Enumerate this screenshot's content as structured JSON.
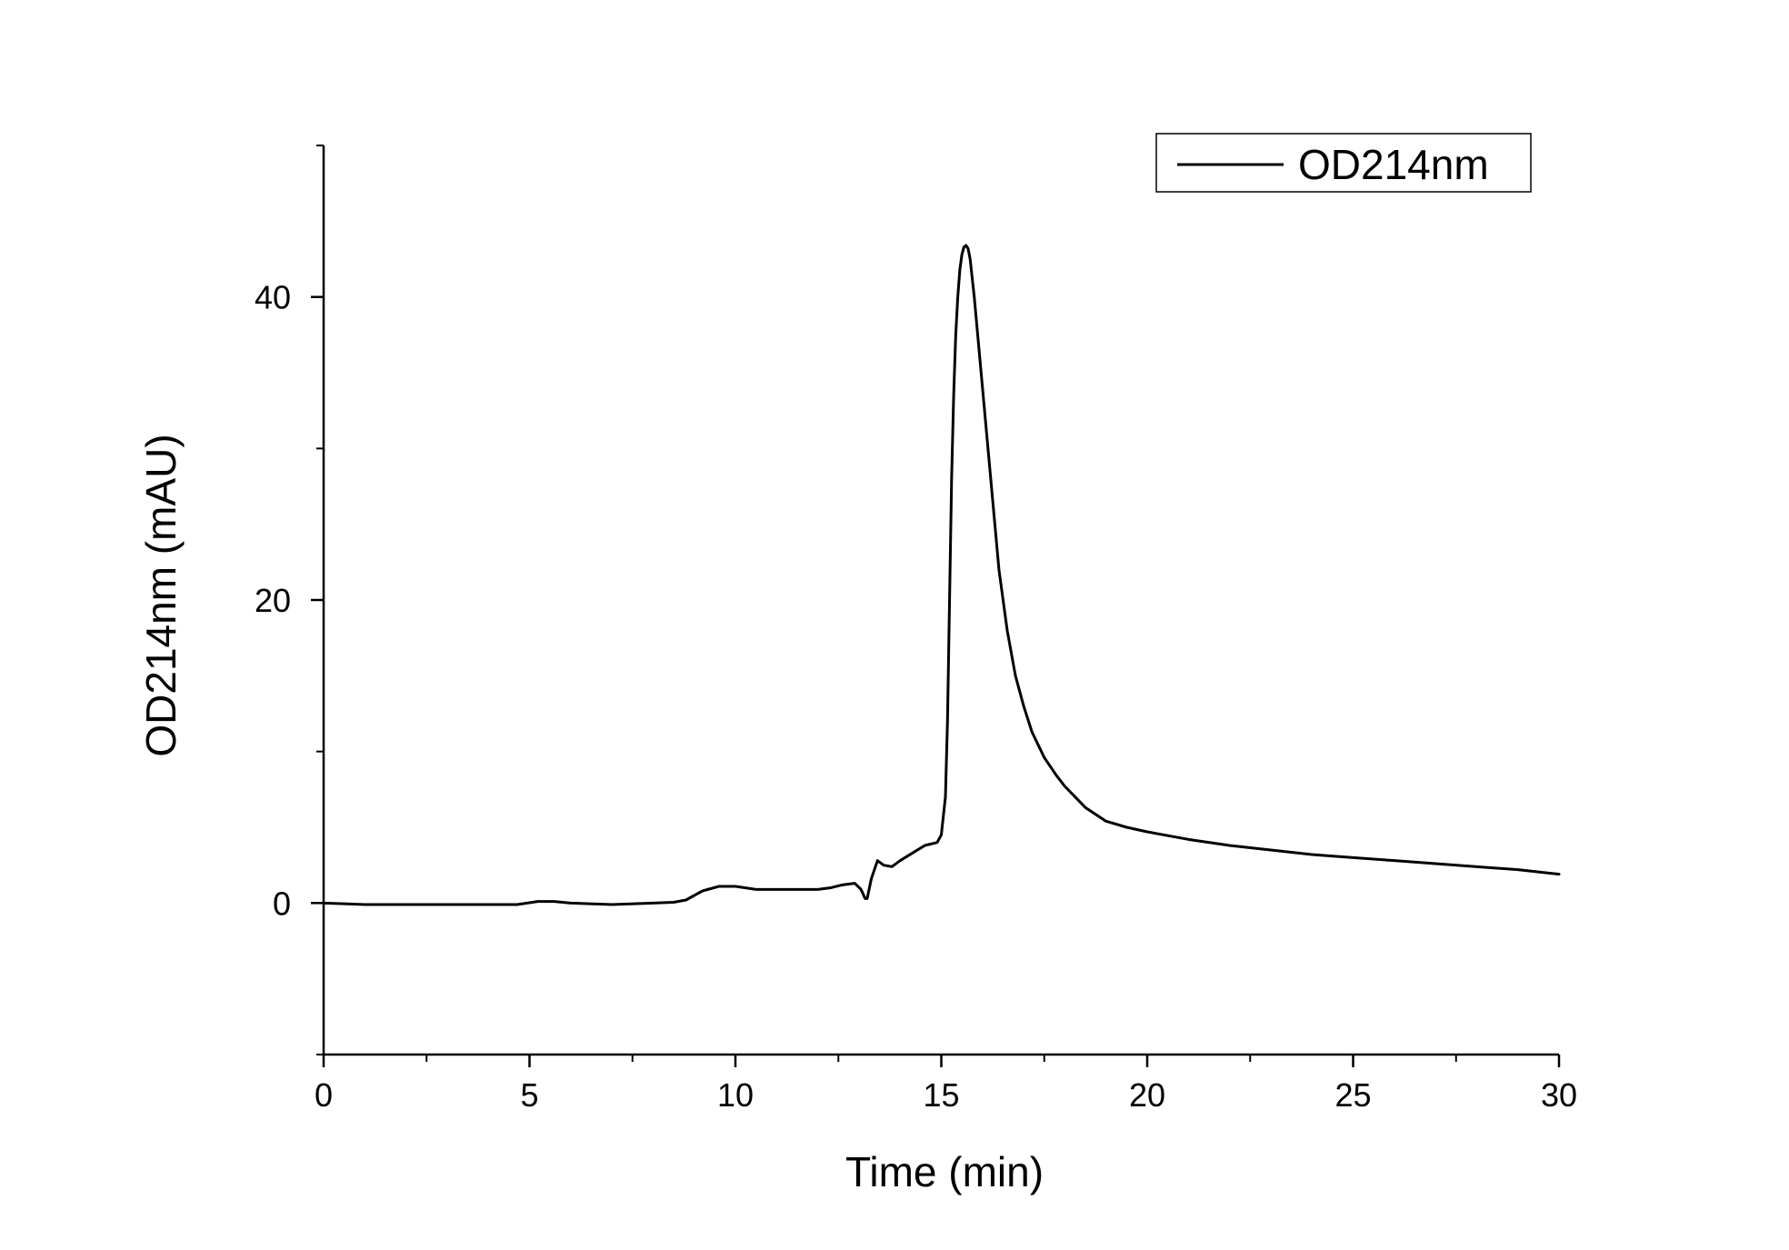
{
  "chart_data": {
    "type": "line",
    "title": "",
    "xlabel": "Time (min)",
    "ylabel": "OD214nm (mAU)",
    "xlim": [
      0,
      30
    ],
    "ylim": [
      -10,
      50
    ],
    "x_ticks": [
      0,
      5,
      10,
      15,
      20,
      25,
      30
    ],
    "x_tick_labels": [
      "0",
      "5",
      "10",
      "15",
      "20",
      "25",
      "30"
    ],
    "y_ticks": [
      0,
      20,
      40
    ],
    "y_tick_labels": [
      "0",
      "20",
      "40"
    ],
    "grid": false,
    "legend": {
      "position": "top-right",
      "entries": [
        "OD214nm"
      ]
    },
    "series": [
      {
        "name": "OD214nm",
        "color": "#000000",
        "x": [
          0,
          1,
          2,
          3,
          4,
          4.7,
          5.2,
          5.6,
          6,
          7,
          8,
          8.5,
          8.8,
          9.2,
          9.6,
          10,
          10.5,
          11,
          11.5,
          12,
          12.3,
          12.6,
          12.9,
          13.05,
          13.15,
          13.2,
          13.3,
          13.45,
          13.6,
          13.8,
          14,
          14.3,
          14.6,
          14.9,
          15.0,
          15.1,
          15.15,
          15.2,
          15.25,
          15.3,
          15.35,
          15.4,
          15.45,
          15.5,
          15.55,
          15.6,
          15.65,
          15.7,
          15.8,
          15.9,
          16.0,
          16.2,
          16.4,
          16.6,
          16.8,
          17.0,
          17.2,
          17.5,
          17.8,
          18.0,
          18.5,
          19.0,
          19.5,
          20,
          21,
          22,
          23,
          24,
          25,
          26,
          27,
          28,
          29,
          30
        ],
        "y": [
          0,
          -0.1,
          -0.1,
          -0.1,
          -0.1,
          -0.1,
          0.1,
          0.1,
          0,
          -0.1,
          0,
          0.05,
          0.2,
          0.8,
          1.1,
          1.1,
          0.9,
          0.9,
          0.9,
          0.9,
          1.0,
          1.2,
          1.3,
          0.9,
          0.3,
          0.3,
          1.6,
          2.8,
          2.5,
          2.4,
          2.8,
          3.3,
          3.8,
          4.0,
          4.5,
          7.0,
          12.0,
          20.0,
          28.0,
          33.5,
          37.5,
          40.0,
          41.8,
          42.8,
          43.3,
          43.4,
          43.2,
          42.5,
          40.0,
          37.0,
          34.0,
          28.0,
          22.0,
          18.0,
          15.0,
          13.0,
          11.3,
          9.6,
          8.4,
          7.7,
          6.3,
          5.4,
          5.0,
          4.7,
          4.2,
          3.8,
          3.5,
          3.2,
          3.0,
          2.8,
          2.6,
          2.4,
          2.2,
          1.9
        ]
      }
    ]
  }
}
